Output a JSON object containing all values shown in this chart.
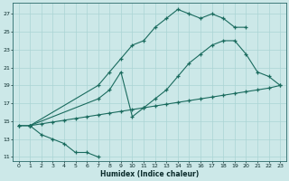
{
  "xlabel": "Humidex (Indice chaleur)",
  "bg_color": "#cce8e8",
  "line_color": "#1a6b5e",
  "grid_color": "#aad4d4",
  "xlim": [
    -0.5,
    23.5
  ],
  "ylim": [
    10.5,
    28.2
  ],
  "xticks": [
    0,
    1,
    2,
    3,
    4,
    5,
    6,
    7,
    8,
    9,
    10,
    11,
    12,
    13,
    14,
    15,
    16,
    17,
    18,
    19,
    20,
    21,
    22,
    23
  ],
  "yticks": [
    11,
    13,
    15,
    17,
    19,
    21,
    23,
    25,
    27
  ],
  "curve1_x": [
    0,
    1,
    2,
    3,
    4,
    5,
    6,
    7
  ],
  "curve1_y": [
    14.5,
    14.5,
    13.5,
    13.0,
    12.5,
    11.5,
    11.5,
    11.0
  ],
  "curve2_x": [
    1,
    7,
    8,
    9,
    10,
    11,
    12,
    13,
    14,
    15,
    16,
    17,
    18,
    19,
    20
  ],
  "curve2_y": [
    14.5,
    19.0,
    20.5,
    22.0,
    23.5,
    24.0,
    25.5,
    26.5,
    27.5,
    27.0,
    26.5,
    27.0,
    26.5,
    25.5,
    25.5
  ],
  "curve3_x": [
    1,
    7,
    8,
    9,
    10,
    11,
    12,
    13,
    14,
    15,
    16,
    17,
    18,
    19,
    20,
    21,
    22,
    23
  ],
  "curve3_y": [
    14.5,
    17.5,
    18.5,
    20.5,
    15.5,
    16.5,
    17.5,
    18.5,
    20.0,
    21.5,
    22.5,
    23.5,
    24.0,
    24.0,
    22.5,
    20.5,
    20.0,
    19.0
  ],
  "curve4_x": [
    0,
    1,
    2,
    3,
    4,
    5,
    6,
    7,
    8,
    9,
    10,
    11,
    12,
    13,
    14,
    15,
    16,
    17,
    18,
    19,
    20,
    21,
    22,
    23
  ],
  "curve4_y": [
    14.5,
    14.5,
    14.7,
    14.9,
    15.1,
    15.3,
    15.5,
    15.7,
    15.9,
    16.1,
    16.3,
    16.5,
    16.7,
    16.9,
    17.1,
    17.3,
    17.5,
    17.7,
    17.9,
    18.1,
    18.3,
    18.5,
    18.7,
    19.0
  ]
}
